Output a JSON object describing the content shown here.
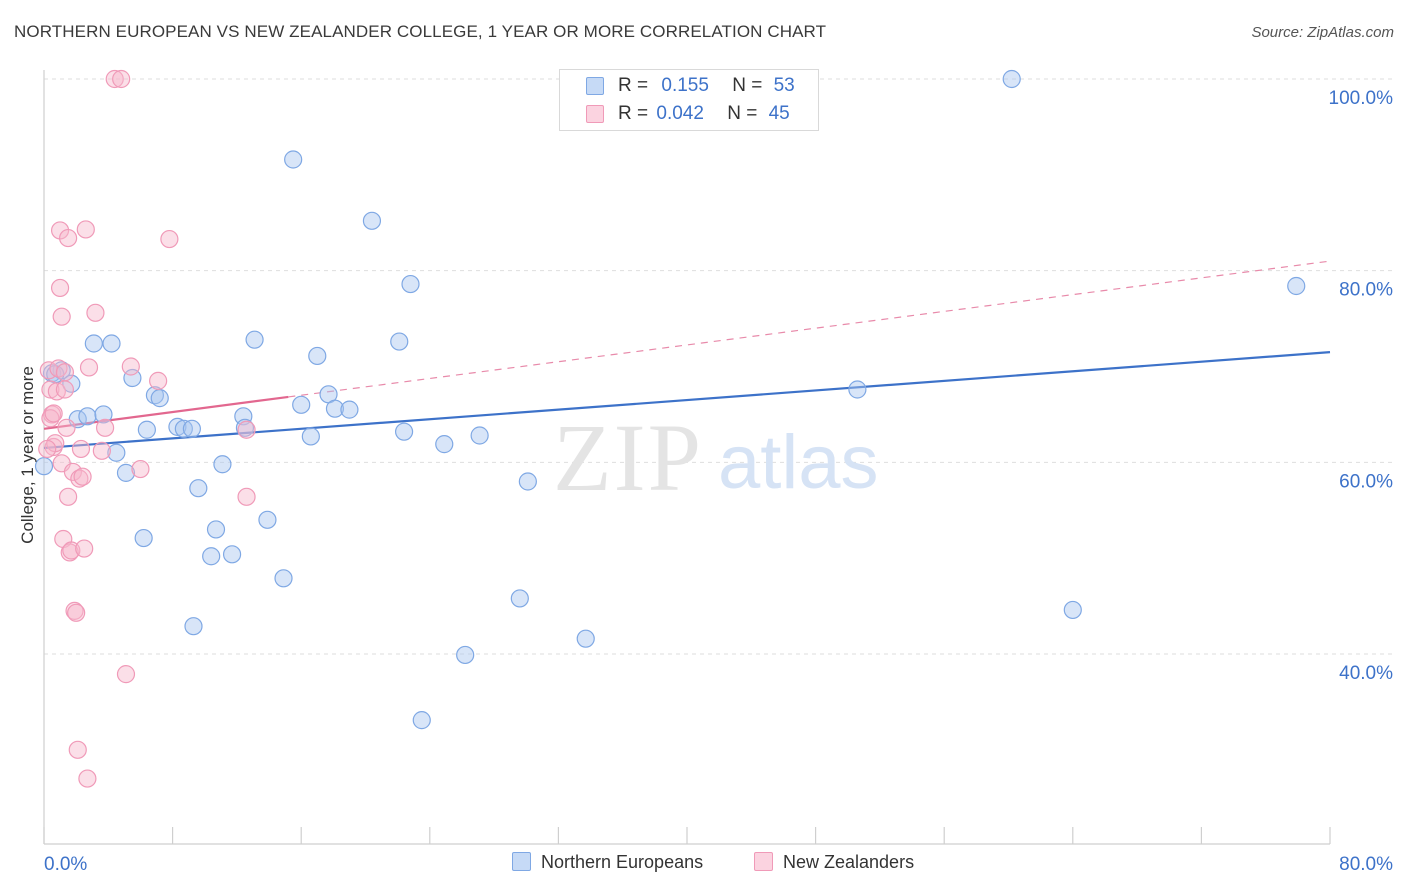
{
  "title": "NORTHERN EUROPEAN VS NEW ZEALANDER COLLEGE, 1 YEAR OR MORE CORRELATION CHART",
  "source": "Source: ZipAtlas.com",
  "watermark": {
    "zip": "ZIP",
    "atlas": "atlas"
  },
  "legend_top": {
    "rows": [
      {
        "r_label": "R =",
        "r_value": "0.155",
        "n_label": "N =",
        "n_value": "53",
        "color": "#a9c6f0"
      },
      {
        "r_label": "R =",
        "r_value": "0.042",
        "n_label": "N =",
        "n_value": "45",
        "color": "#f7b8cc"
      }
    ]
  },
  "legend_bottom": {
    "items": [
      {
        "label": "Northern Europeans",
        "color": "#a9c6f0"
      },
      {
        "label": "New Zealanders",
        "color": "#f7b8cc"
      }
    ]
  },
  "chart_data": {
    "type": "scatter",
    "title": "NORTHERN EUROPEAN VS NEW ZEALANDER COLLEGE, 1 YEAR OR MORE CORRELATION CHART",
    "xlabel": "",
    "ylabel": "College, 1 year or more",
    "xlim": [
      0,
      80
    ],
    "ylim": [
      20,
      102
    ],
    "x_tick_labels": [
      "0.0%",
      "80.0%"
    ],
    "y_tick_values": [
      40,
      60,
      80,
      100
    ],
    "y_tick_labels": [
      "40.0%",
      "60.0%",
      "80.0%",
      "100.0%"
    ],
    "series": [
      {
        "name": "Northern Europeans",
        "color": "#3d72c9",
        "fill": "#a9c6f0",
        "r": 0.155,
        "n": 53,
        "trend": {
          "x0": 0,
          "y0": 61.5,
          "x1": 80,
          "y1": 71.5,
          "dashed_from": null
        },
        "points": [
          [
            0.5,
            69.3
          ],
          [
            1.1,
            69.6
          ],
          [
            1.7,
            68.2
          ],
          [
            2.1,
            64.5
          ],
          [
            2.7,
            64.8
          ],
          [
            3.1,
            72.4
          ],
          [
            3.7,
            65.0
          ],
          [
            4.2,
            72.4
          ],
          [
            4.5,
            61.0
          ],
          [
            5.1,
            58.9
          ],
          [
            5.5,
            68.8
          ],
          [
            6.2,
            52.1
          ],
          [
            6.4,
            63.4
          ],
          [
            6.9,
            67.0
          ],
          [
            7.2,
            66.7
          ],
          [
            8.3,
            63.7
          ],
          [
            8.7,
            63.5
          ],
          [
            9.2,
            63.5
          ],
          [
            9.3,
            42.9
          ],
          [
            9.6,
            57.3
          ],
          [
            10.4,
            50.2
          ],
          [
            10.7,
            53.0
          ],
          [
            11.1,
            59.8
          ],
          [
            11.7,
            50.4
          ],
          [
            12.4,
            64.8
          ],
          [
            12.5,
            63.6
          ],
          [
            13.1,
            72.8
          ],
          [
            13.9,
            54.0
          ],
          [
            14.9,
            47.9
          ],
          [
            15.5,
            91.6
          ],
          [
            16.0,
            66.0
          ],
          [
            16.6,
            62.7
          ],
          [
            17.0,
            71.1
          ],
          [
            17.7,
            67.1
          ],
          [
            18.1,
            65.6
          ],
          [
            19.0,
            65.5
          ],
          [
            20.4,
            85.2
          ],
          [
            22.1,
            72.6
          ],
          [
            22.4,
            63.2
          ],
          [
            22.8,
            78.6
          ],
          [
            23.5,
            33.1
          ],
          [
            24.9,
            61.9
          ],
          [
            26.2,
            39.9
          ],
          [
            27.1,
            62.8
          ],
          [
            29.6,
            45.8
          ],
          [
            30.1,
            58.0
          ],
          [
            33.7,
            41.6
          ],
          [
            50.6,
            67.6
          ],
          [
            60.2,
            100.0
          ],
          [
            64.0,
            44.6
          ],
          [
            77.9,
            78.4
          ],
          [
            0.0,
            59.6
          ],
          [
            0.7,
            69.2
          ]
        ]
      },
      {
        "name": "New Zealanders",
        "color": "#e2678f",
        "fill": "#f7b8cc",
        "r": 0.042,
        "n": 45,
        "trend": {
          "x0": 0,
          "y0": 63.5,
          "x1": 80,
          "y1": 81.0,
          "solid_until": 15.2
        },
        "points": [
          [
            0.3,
            69.6
          ],
          [
            0.4,
            67.6
          ],
          [
            0.5,
            65.0
          ],
          [
            0.6,
            61.6
          ],
          [
            0.7,
            62.0
          ],
          [
            0.8,
            67.4
          ],
          [
            0.9,
            69.8
          ],
          [
            1.0,
            84.2
          ],
          [
            1.0,
            78.2
          ],
          [
            1.1,
            75.2
          ],
          [
            1.1,
            59.9
          ],
          [
            1.2,
            52.0
          ],
          [
            1.3,
            67.6
          ],
          [
            1.4,
            63.6
          ],
          [
            1.5,
            56.4
          ],
          [
            1.5,
            83.4
          ],
          [
            1.6,
            50.6
          ],
          [
            1.7,
            50.8
          ],
          [
            1.8,
            59.0
          ],
          [
            1.9,
            44.5
          ],
          [
            2.0,
            44.3
          ],
          [
            2.1,
            30.0
          ],
          [
            2.2,
            58.3
          ],
          [
            2.3,
            61.4
          ],
          [
            2.5,
            51.0
          ],
          [
            2.6,
            84.3
          ],
          [
            2.7,
            27.0
          ],
          [
            2.8,
            69.9
          ],
          [
            3.2,
            75.6
          ],
          [
            3.6,
            61.2
          ],
          [
            3.8,
            63.6
          ],
          [
            4.4,
            100.0
          ],
          [
            4.8,
            100.0
          ],
          [
            5.1,
            37.9
          ],
          [
            5.4,
            70.0
          ],
          [
            6.0,
            59.3
          ],
          [
            7.1,
            68.5
          ],
          [
            7.8,
            83.3
          ],
          [
            12.6,
            63.4
          ],
          [
            12.6,
            56.4
          ],
          [
            0.2,
            61.4
          ],
          [
            0.4,
            64.6
          ],
          [
            0.6,
            65.1
          ],
          [
            1.3,
            69.4
          ],
          [
            2.4,
            58.5
          ]
        ]
      }
    ]
  }
}
